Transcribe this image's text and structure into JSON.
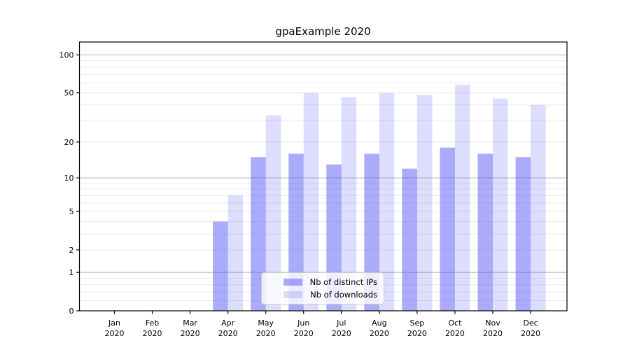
{
  "chart_data": {
    "type": "bar",
    "title": "gpaExample 2020",
    "categories": [
      "Jan",
      "Feb",
      "Mar",
      "Apr",
      "May",
      "Jun",
      "Jul",
      "Aug",
      "Sep",
      "Oct",
      "Nov",
      "Dec"
    ],
    "category_year": "2020",
    "series": [
      {
        "name": "Nb of distinct IPs",
        "values": [
          0,
          0,
          0,
          4,
          15,
          16,
          13,
          16,
          12,
          18,
          16,
          15
        ],
        "color": "rgba(85,87,245,0.5)"
      },
      {
        "name": "Nb of downloads",
        "values": [
          0,
          0,
          0,
          7,
          33,
          50,
          46,
          50,
          48,
          58,
          45,
          40
        ],
        "color": "rgba(85,87,245,0.2)"
      }
    ],
    "xlabel": "",
    "ylabel": "",
    "yscale": "symlog",
    "ylim": [
      0,
      126
    ],
    "yticks": [
      0,
      1,
      2,
      5,
      10,
      20,
      50,
      100
    ],
    "major_gridlines": [
      1,
      10,
      100
    ],
    "minor_gridlines": [
      0.2,
      0.4,
      0.6,
      0.8,
      2,
      3,
      4,
      5,
      6,
      7,
      8,
      9,
      20,
      30,
      40,
      50,
      60,
      70,
      80,
      90
    ],
    "legend_position": "lower center",
    "colors": {
      "bar_dark": "rgba(85,87,245,0.5)",
      "bar_light": "rgba(85,87,245,0.2)",
      "grid_major": "#b0b0b0",
      "grid_minor": "#ececec",
      "spine": "#000000",
      "text": "#000000",
      "legend_border": "#cccccc",
      "legend_bg": "rgba(255,255,255,0.8)"
    }
  }
}
